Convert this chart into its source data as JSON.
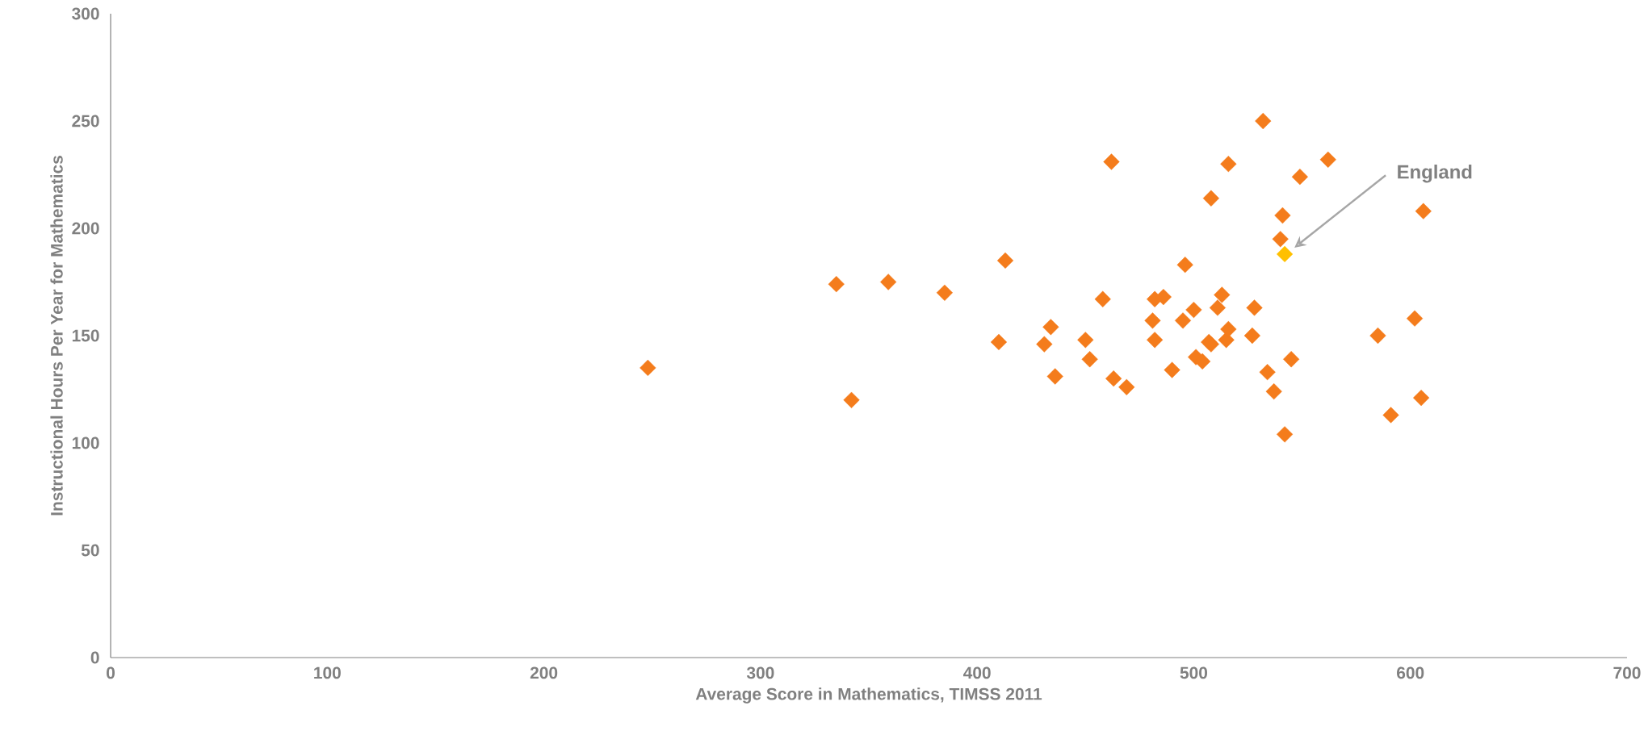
{
  "chart_data": {
    "type": "scatter",
    "xlabel": "Average Score in Mathematics, TIMSS 2011",
    "ylabel": "Instructional Hours Per Year for Mathematics",
    "xlim": [
      0,
      700
    ],
    "xticks": [
      0,
      100,
      200,
      300,
      400,
      500,
      600,
      700
    ],
    "ylim": [
      0,
      300
    ],
    "yticks": [
      0,
      50,
      100,
      150,
      200,
      250,
      300
    ],
    "marker": "diamond",
    "grid": false,
    "series": [
      {
        "color": "#f47c1c",
        "x": [
          248,
          335,
          342,
          359,
          385,
          410,
          413,
          431,
          434,
          436,
          450,
          452,
          458,
          462,
          463,
          469,
          481,
          482,
          482,
          486,
          490,
          495,
          496,
          500,
          501,
          504,
          507,
          508,
          508,
          511,
          513,
          515,
          516,
          516,
          527,
          528,
          532,
          534,
          537,
          540,
          541,
          542,
          545,
          549,
          562,
          585,
          591,
          602,
          605,
          606
        ],
        "values": [
          135,
          174,
          120,
          175,
          170,
          147,
          185,
          146,
          154,
          131,
          148,
          139,
          167,
          231,
          130,
          126,
          157,
          167,
          148,
          168,
          134,
          157,
          183,
          162,
          140,
          138,
          147,
          146,
          214,
          163,
          169,
          148,
          153,
          230,
          150,
          163,
          250,
          133,
          124,
          195,
          206,
          104,
          139,
          224,
          232,
          150,
          113,
          158,
          121,
          208
        ]
      },
      {
        "color": "#ffc000",
        "x": [
          542
        ],
        "values": [
          188
        ]
      }
    ],
    "annotations": [
      "England"
    ]
  }
}
